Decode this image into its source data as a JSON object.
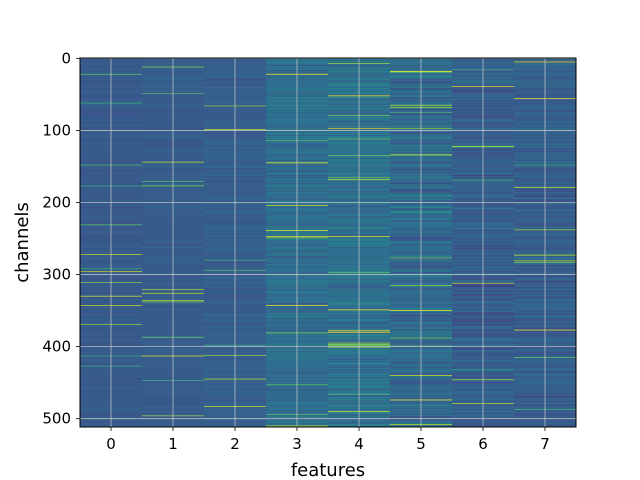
{
  "chart_data": {
    "type": "heatmap",
    "title": "",
    "xlabel": "features",
    "ylabel": "channels",
    "columns": [
      0,
      1,
      2,
      3,
      4,
      5,
      6,
      7
    ],
    "x_ticks": [
      "0",
      "1",
      "2",
      "3",
      "4",
      "5",
      "6",
      "7"
    ],
    "y_ticks": [
      0,
      100,
      200,
      300,
      400,
      500
    ],
    "y_tick_labels": [
      "0",
      "100",
      "200",
      "300",
      "400",
      "500"
    ],
    "rows": 512,
    "xlim": [
      -0.5,
      7.5
    ],
    "ylim": [
      511.5,
      -0.5
    ],
    "y_inverted": true,
    "grid": true,
    "colormap": "viridis",
    "colormap_stops": [
      "#440154",
      "#482475",
      "#414487",
      "#355f8d",
      "#2a788e",
      "#21918c",
      "#22a884",
      "#44bf70",
      "#7ad151",
      "#bddf26",
      "#fde725"
    ],
    "column_mean": [
      0.28,
      0.29,
      0.3,
      0.36,
      0.37,
      0.34,
      0.3,
      0.3
    ],
    "column_spread": [
      0.05,
      0.06,
      0.08,
      0.14,
      0.16,
      0.2,
      0.17,
      0.15
    ],
    "value_range": [
      0,
      1
    ]
  }
}
